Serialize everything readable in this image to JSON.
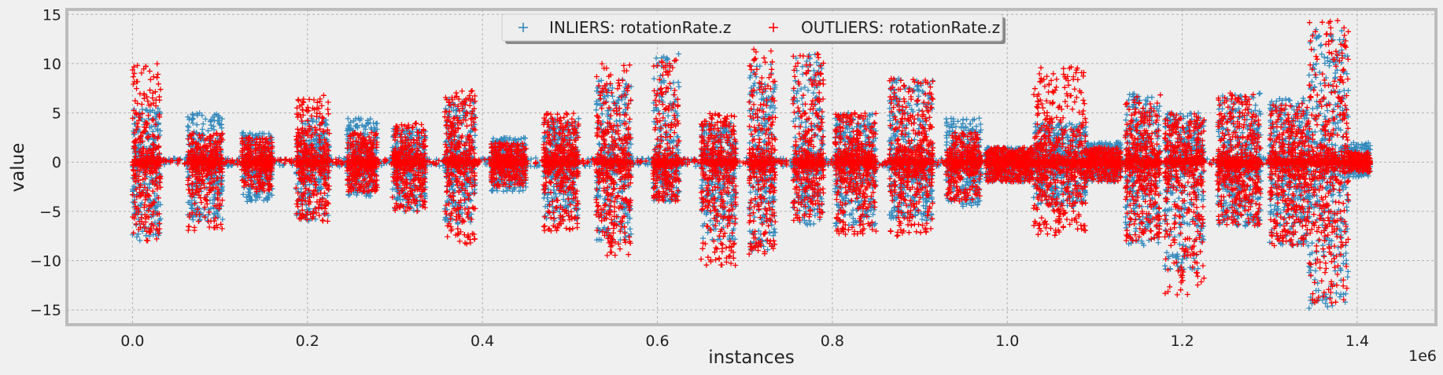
{
  "chart_data": {
    "type": "scatter",
    "title": "",
    "xlabel": "instances",
    "ylabel": "value",
    "x_offset_label": "1e6",
    "xlim": [
      -0.075,
      1.49
    ],
    "ylim": [
      -16.5,
      15.5
    ],
    "x_ticks": [
      0.0,
      0.2,
      0.4,
      0.6,
      0.8,
      1.0,
      1.2,
      1.4
    ],
    "x_tick_labels": [
      "0.0",
      "0.2",
      "0.4",
      "0.6",
      "0.8",
      "1.0",
      "1.2",
      "1.4"
    ],
    "y_ticks": [
      15,
      10,
      5,
      0,
      -5,
      -10,
      -15
    ],
    "y_tick_labels": [
      "15",
      "10",
      "5",
      "0",
      "−5",
      "−10",
      "−15"
    ],
    "grid": true,
    "legend_position": "top-center",
    "series": [
      {
        "name": "INLIERS: rotationRate.z",
        "marker": "+",
        "color": "#348ABD"
      },
      {
        "name": "OUTLIERS: rotationRate.z",
        "marker": "+",
        "color": "#FF0000"
      }
    ],
    "segments": [
      {
        "x0": 0.0,
        "x1": 0.032,
        "in": [
          -8.0,
          5.5
        ],
        "out": [
          -8.0,
          10.0
        ]
      },
      {
        "x0": 0.063,
        "x1": 0.103,
        "in": [
          -6.0,
          5.0
        ],
        "out": [
          -7.0,
          3.0
        ]
      },
      {
        "x0": 0.125,
        "x1": 0.16,
        "in": [
          -4.0,
          3.0
        ],
        "out": [
          -3.0,
          2.5
        ]
      },
      {
        "x0": 0.187,
        "x1": 0.225,
        "in": [
          -6.0,
          4.5
        ],
        "out": [
          -6.0,
          6.8
        ]
      },
      {
        "x0": 0.245,
        "x1": 0.28,
        "in": [
          -3.5,
          4.5
        ],
        "out": [
          -3.0,
          3.0
        ]
      },
      {
        "x0": 0.297,
        "x1": 0.335,
        "in": [
          -5.0,
          3.5
        ],
        "out": [
          -5.0,
          4.0
        ]
      },
      {
        "x0": 0.357,
        "x1": 0.392,
        "in": [
          -6.5,
          6.5
        ],
        "out": [
          -8.5,
          7.3
        ]
      },
      {
        "x0": 0.41,
        "x1": 0.45,
        "in": [
          -3.0,
          2.5
        ],
        "out": [
          -2.5,
          2.0
        ]
      },
      {
        "x0": 0.47,
        "x1": 0.51,
        "in": [
          -6.0,
          4.5
        ],
        "out": [
          -7.0,
          5.0
        ]
      },
      {
        "x0": 0.53,
        "x1": 0.57,
        "in": [
          -8.0,
          8.5
        ],
        "out": [
          -9.5,
          10.0
        ]
      },
      {
        "x0": 0.595,
        "x1": 0.625,
        "in": [
          -4.0,
          11.0
        ],
        "out": [
          -4.0,
          10.5
        ]
      },
      {
        "x0": 0.65,
        "x1": 0.69,
        "in": [
          -8.0,
          4.0
        ],
        "out": [
          -10.5,
          5.0
        ]
      },
      {
        "x0": 0.705,
        "x1": 0.735,
        "in": [
          -9.0,
          10.0
        ],
        "out": [
          -9.5,
          11.5
        ]
      },
      {
        "x0": 0.755,
        "x1": 0.79,
        "in": [
          -6.5,
          11.0
        ],
        "out": [
          -6.0,
          11.0
        ]
      },
      {
        "x0": 0.803,
        "x1": 0.85,
        "in": [
          -6.5,
          5.0
        ],
        "out": [
          -7.5,
          5.0
        ]
      },
      {
        "x0": 0.865,
        "x1": 0.915,
        "in": [
          -6.0,
          8.5
        ],
        "out": [
          -7.5,
          8.5
        ]
      },
      {
        "x0": 0.93,
        "x1": 0.97,
        "in": [
          -4.5,
          4.5
        ],
        "out": [
          -4.0,
          3.0
        ]
      },
      {
        "x0": 0.975,
        "x1": 1.03,
        "in": [
          -2.0,
          1.5
        ],
        "out": [
          -2.0,
          1.5
        ]
      },
      {
        "x0": 1.03,
        "x1": 1.09,
        "in": [
          -4.5,
          4.0
        ],
        "out": [
          -7.5,
          9.8
        ]
      },
      {
        "x0": 1.09,
        "x1": 1.13,
        "in": [
          -2.0,
          2.0
        ],
        "out": [
          -2.0,
          1.5
        ]
      },
      {
        "x0": 1.135,
        "x1": 1.175,
        "in": [
          -8.5,
          7.0
        ],
        "out": [
          -8.0,
          7.0
        ]
      },
      {
        "x0": 1.18,
        "x1": 1.225,
        "in": [
          -11.0,
          5.0
        ],
        "out": [
          -13.5,
          5.0
        ]
      },
      {
        "x0": 1.24,
        "x1": 1.29,
        "in": [
          -6.5,
          7.0
        ],
        "out": [
          -6.5,
          7.0
        ]
      },
      {
        "x0": 1.3,
        "x1": 1.345,
        "in": [
          -8.5,
          6.5
        ],
        "out": [
          -8.5,
          6.0
        ]
      },
      {
        "x0": 1.345,
        "x1": 1.39,
        "in": [
          -15.0,
          13.5
        ],
        "out": [
          -15.0,
          14.5
        ]
      },
      {
        "x0": 1.39,
        "x1": 1.415,
        "in": [
          -1.5,
          2.0
        ],
        "out": [
          -1.0,
          1.0
        ]
      }
    ]
  }
}
